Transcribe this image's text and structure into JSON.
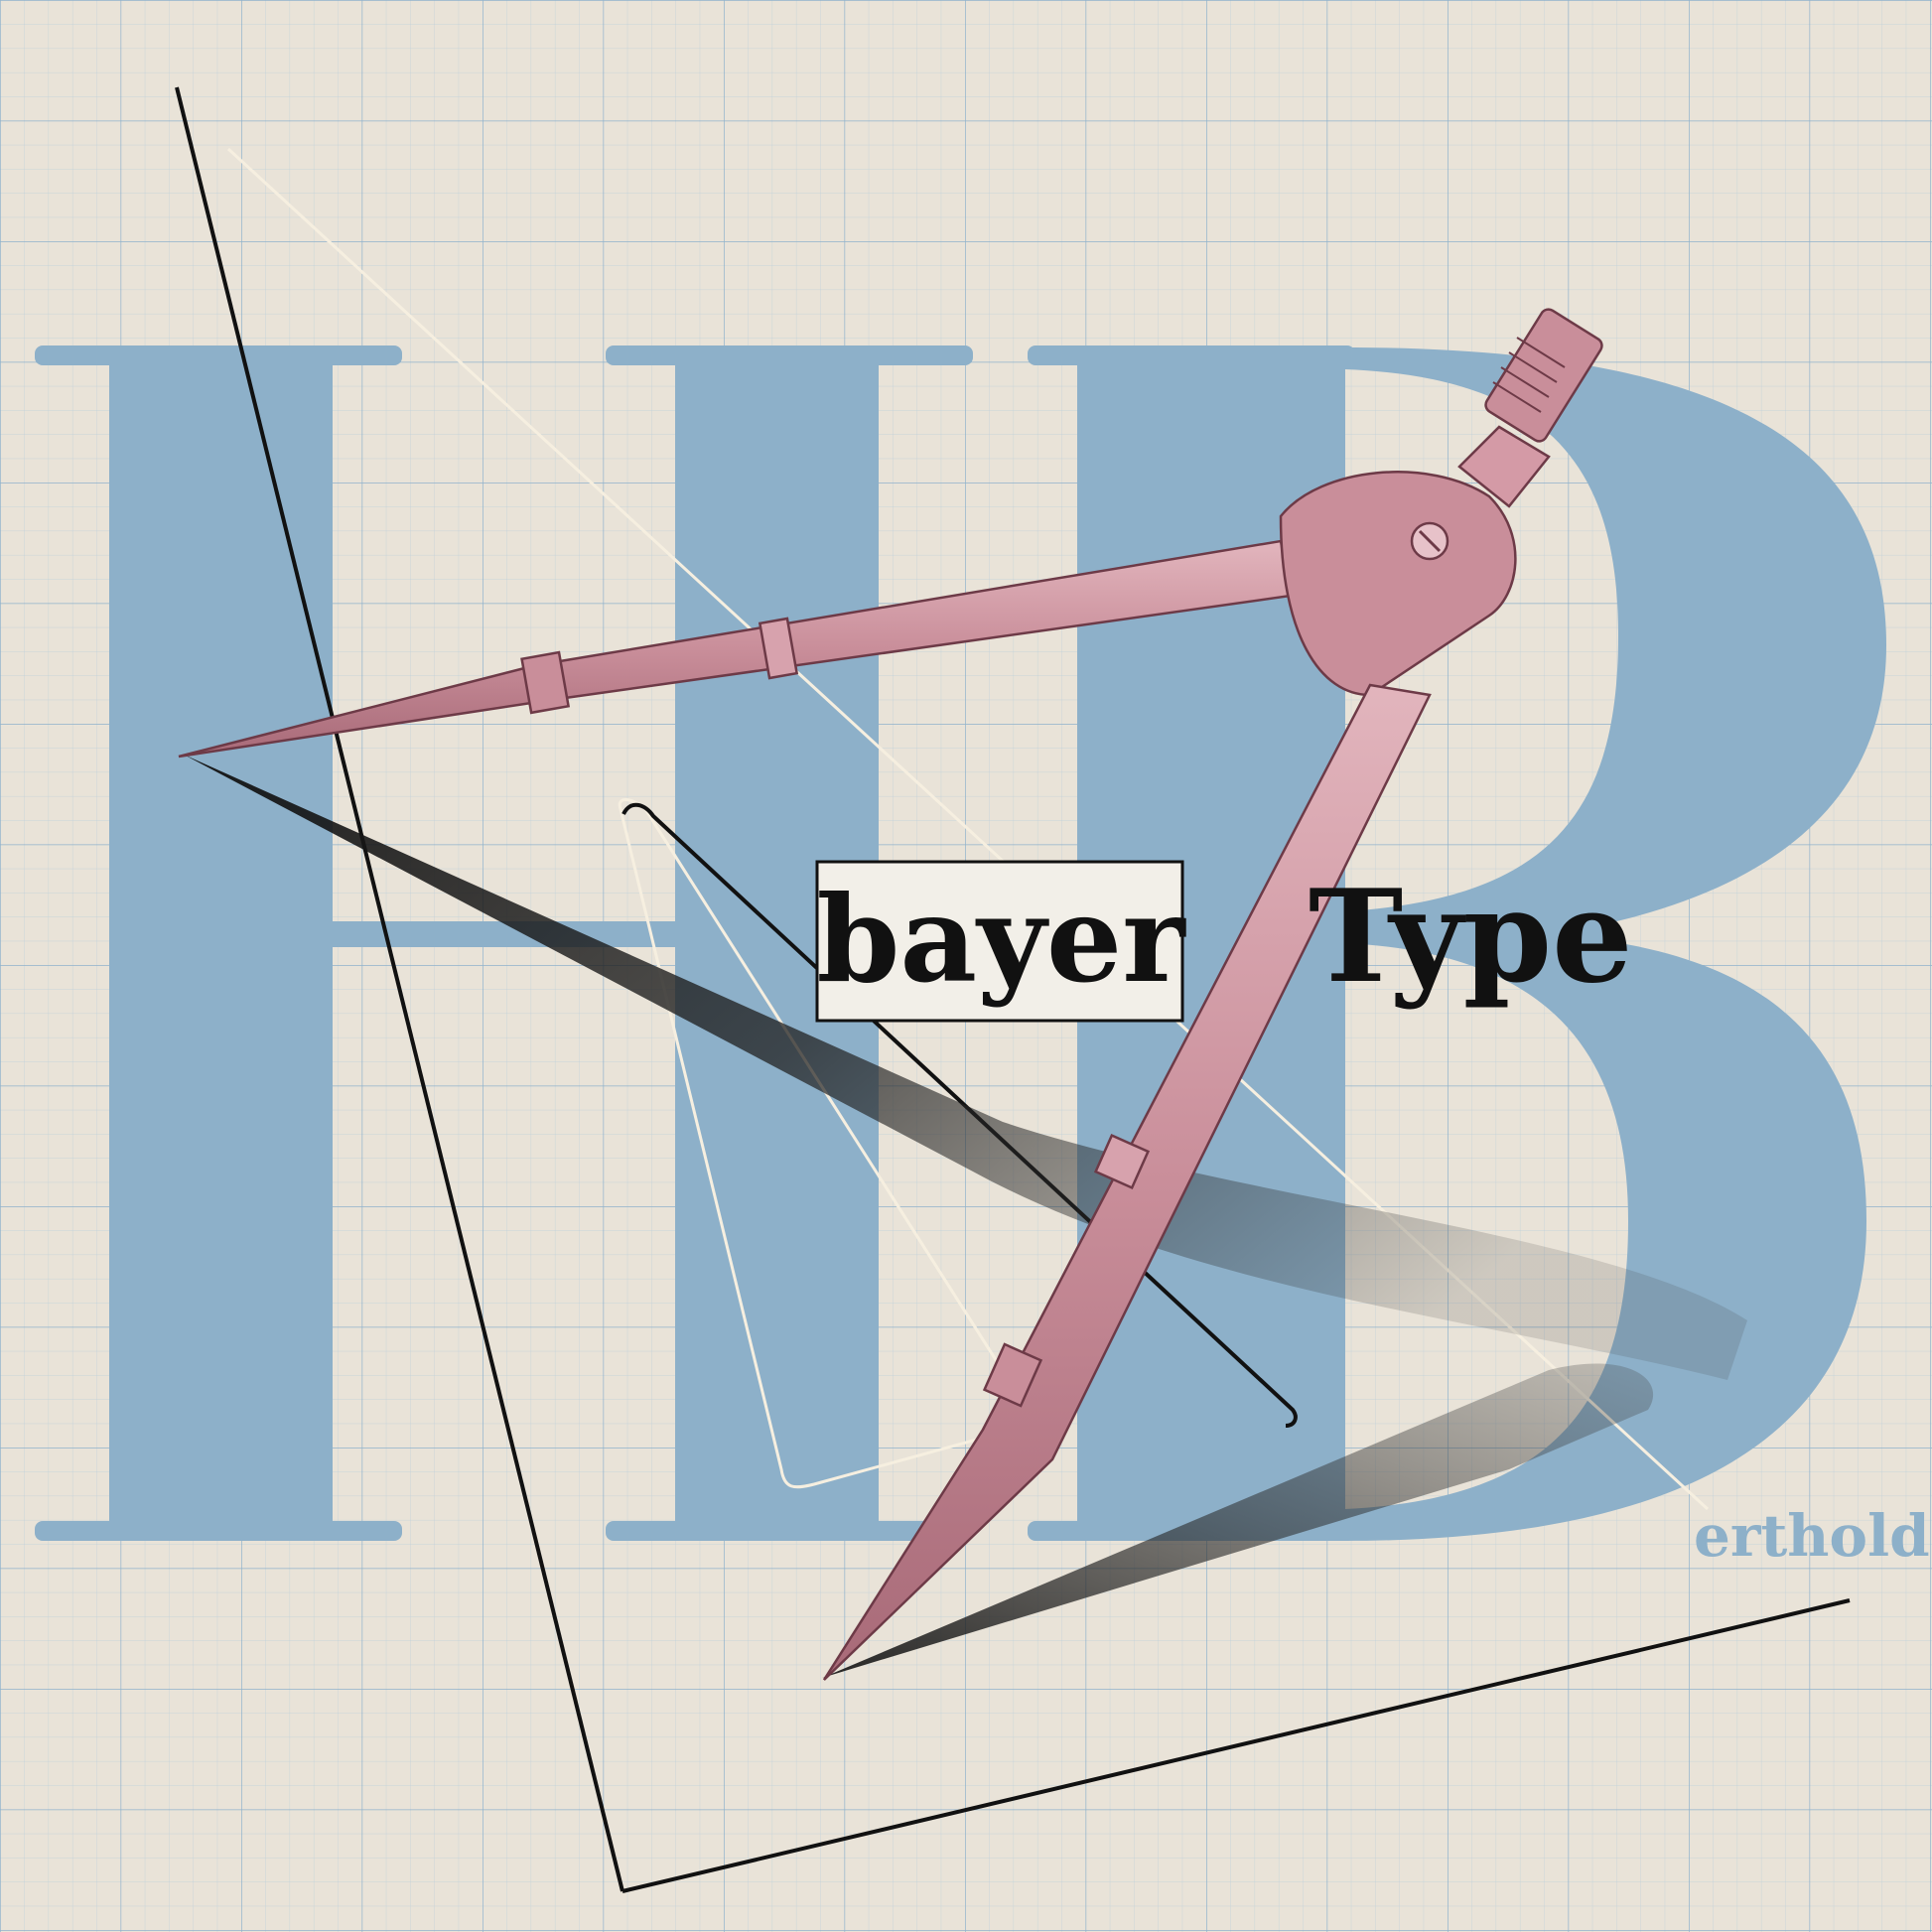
{
  "poster": {
    "bayer_word": "bayer",
    "type_word": "Type",
    "monogram_letters": "HB",
    "berthold_tail": "erthold",
    "compass_label": "drawing-compass-illustration"
  },
  "colors": {
    "paper": "#e9e3d8",
    "grid_blue": "#8fb6d2",
    "letter_blue": "#8db0c9",
    "compass_pink": "#c98e9a",
    "ink_black": "#111111"
  }
}
